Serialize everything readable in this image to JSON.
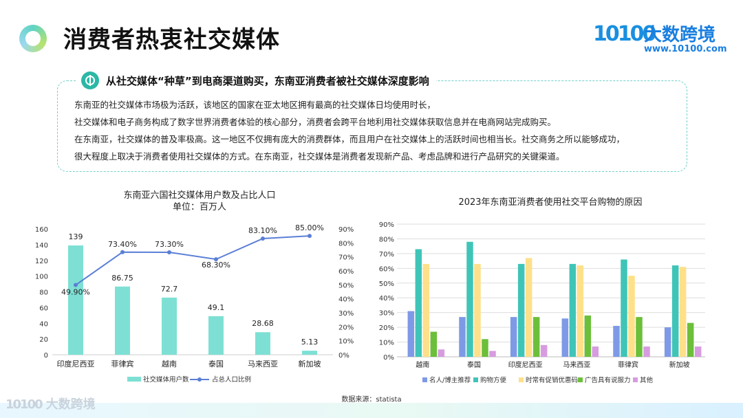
{
  "header": {
    "title": "消费者热衷社交媒体",
    "logo_mark": "10100",
    "logo_name": "大数跨境",
    "logo_url": "www.10100.com"
  },
  "intro": {
    "headline": "从社交媒体“种草”到电商渠道购买，东南亚消费者被社交媒体深度影响",
    "lines": [
      "东南亚的社交媒体市场极为活跃，该地区的国家在亚太地区拥有最高的社交媒体日均使用时长，",
      "社交媒体和电子商务构成了数字世界消费者体验的核心部分，消费者会跨平台地利用社交媒体获取信息并在电商网站完成购买。",
      "在东南亚，社交媒体的普及率极高。这一地区不仅拥有庞大的消费群体，而且用户在社交媒体上的活跃时间也相当长。社交商务之所以能够成功，",
      "很大程度上取决于消费者使用社交媒体的方式。在东南亚，社交媒体是消费者发现新产品、考虑品牌和进行产品研究的关键渠道。"
    ]
  },
  "source": "数据来源：statista",
  "footer": {
    "logo_mark": "10100",
    "logo_name": "大数跨境"
  },
  "colors": {
    "teal": "#7ee0d4",
    "line": "#5b7fd6",
    "blue": "#7e9ae6",
    "turquoise": "#3fc5b8",
    "yellow": "#ffe08a",
    "green": "#6bbf3a",
    "pink": "#d79ce0"
  },
  "chart_data": [
    {
      "type": "bar",
      "title": "东南亚六国社交媒体用户数及占比人口",
      "subtitle": "单位：百万人",
      "categories": [
        "印度尼西亚",
        "菲律宾",
        "越南",
        "泰国",
        "马来西亚",
        "新加坡"
      ],
      "series": [
        {
          "name": "社交媒体用户数",
          "type": "bar",
          "axis": "left",
          "values": [
            139,
            86.75,
            72.7,
            49.1,
            28.68,
            5.13
          ],
          "labels": [
            "139",
            "86.75",
            "72.7",
            "49.1",
            "28.68",
            "5.13"
          ]
        },
        {
          "name": "占总人口比例",
          "type": "line",
          "axis": "right",
          "values": [
            49.9,
            73.4,
            73.3,
            68.3,
            83.1,
            85.0
          ],
          "labels": [
            "49.90%",
            "73.40%",
            "73.30%",
            "68.30%",
            "83.10%",
            "85.00%"
          ]
        }
      ],
      "ylim_left": [
        0,
        160
      ],
      "yticks_left": [
        "0",
        "20",
        "40",
        "60",
        "80",
        "100",
        "120",
        "140",
        "160"
      ],
      "ylim_right": [
        0,
        90
      ],
      "yticks_right": [
        "0%",
        "10%",
        "20%",
        "30%",
        "40%",
        "50%",
        "60%",
        "70%",
        "80%",
        "90%"
      ],
      "legend": "bottom",
      "grid": false
    },
    {
      "type": "bar",
      "title": "2023年东南亚消费者使用社交平台购物的原因",
      "categories": [
        "越南",
        "泰国",
        "印度尼西亚",
        "马来西亚",
        "菲律宾",
        "新加坡"
      ],
      "series": [
        {
          "name": "名人/博主推荐",
          "values": [
            31,
            27,
            27,
            26,
            21,
            20
          ]
        },
        {
          "name": "购物方便",
          "values": [
            73,
            78,
            63,
            63,
            66,
            62
          ]
        },
        {
          "name": "时常有促销优惠码",
          "values": [
            63,
            63,
            67,
            62,
            55,
            61
          ]
        },
        {
          "name": "广告具有说服力",
          "values": [
            17,
            12,
            27,
            28,
            27,
            23
          ]
        },
        {
          "name": "其他",
          "values": [
            5,
            4,
            8,
            7,
            7,
            7
          ]
        }
      ],
      "ylim": [
        0,
        90
      ],
      "yticks": [
        "0%",
        "10%",
        "20%",
        "30%",
        "40%",
        "50%",
        "60%",
        "70%",
        "80%",
        "90%"
      ],
      "legend": "bottom",
      "grid": true
    }
  ]
}
